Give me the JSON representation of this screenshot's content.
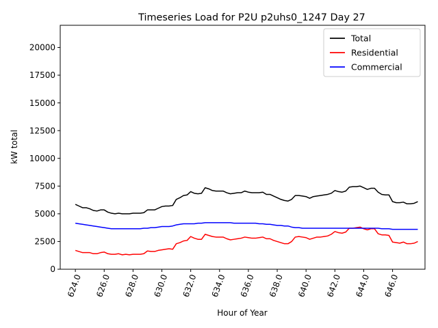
{
  "chart_data": {
    "type": "line",
    "title": "Timeseries Load for P2U p2uhs0_1247  Day 27",
    "xlabel": "Hour of Year",
    "ylabel": "kW total",
    "xlim": [
      622.95,
      648.25
    ],
    "ylim": [
      0,
      22000
    ],
    "xticks": [
      624,
      626,
      628,
      630,
      632,
      634,
      636,
      638,
      640,
      642,
      644,
      646
    ],
    "xtick_labels": [
      "624.0",
      "626.0",
      "628.0",
      "630.0",
      "632.0",
      "634.0",
      "636.0",
      "638.0",
      "640.0",
      "642.0",
      "644.0",
      "646.0"
    ],
    "yticks": [
      0,
      2500,
      5000,
      7500,
      10000,
      12500,
      15000,
      17500,
      20000
    ],
    "ytick_labels": [
      "0",
      "2500",
      "5000",
      "7500",
      "10000",
      "12500",
      "15000",
      "17500",
      "20000"
    ],
    "legend_position": "top-right",
    "series": [
      {
        "name": "Total",
        "color": "#000000",
        "x": [
          624.0,
          624.25,
          624.5,
          624.75,
          625.0,
          625.25,
          625.5,
          625.75,
          626.0,
          626.25,
          626.5,
          626.75,
          627.0,
          627.25,
          627.5,
          627.75,
          628.0,
          628.25,
          628.5,
          628.75,
          629.0,
          629.25,
          629.5,
          629.75,
          630.0,
          630.25,
          630.5,
          630.75,
          631.0,
          631.25,
          631.5,
          631.75,
          632.0,
          632.25,
          632.5,
          632.75,
          633.0,
          633.25,
          633.5,
          633.75,
          634.0,
          634.25,
          634.5,
          634.75,
          635.0,
          635.25,
          635.5,
          635.75,
          636.0,
          636.25,
          636.5,
          636.75,
          637.0,
          637.25,
          637.5,
          637.75,
          638.0,
          638.25,
          638.5,
          638.75,
          639.0,
          639.25,
          639.5,
          639.75,
          640.0,
          640.25,
          640.5,
          640.75,
          641.0,
          641.25,
          641.5,
          641.75,
          642.0,
          642.25,
          642.5,
          642.75,
          643.0,
          643.25,
          643.5,
          643.75,
          644.0,
          644.25,
          644.5,
          644.75,
          645.0,
          645.25,
          645.5,
          645.75,
          646.0,
          646.25,
          646.5,
          646.75,
          647.0,
          647.25,
          647.5,
          647.75
        ],
        "values": [
          5850,
          5700,
          5550,
          5550,
          5450,
          5300,
          5250,
          5350,
          5350,
          5150,
          5050,
          5000,
          5050,
          5000,
          5000,
          5000,
          5050,
          5050,
          5050,
          5100,
          5350,
          5350,
          5350,
          5500,
          5650,
          5700,
          5700,
          5750,
          6300,
          6450,
          6650,
          6700,
          7000,
          6850,
          6800,
          6850,
          7350,
          7250,
          7100,
          7050,
          7050,
          7050,
          6900,
          6800,
          6850,
          6900,
          6900,
          7050,
          6950,
          6900,
          6900,
          6900,
          6950,
          6750,
          6750,
          6600,
          6450,
          6300,
          6200,
          6150,
          6300,
          6650,
          6650,
          6600,
          6550,
          6400,
          6550,
          6600,
          6650,
          6700,
          6750,
          6850,
          7100,
          7000,
          6950,
          7050,
          7400,
          7450,
          7450,
          7500,
          7350,
          7200,
          7300,
          7300,
          6950,
          6750,
          6700,
          6700,
          6100,
          6000,
          6000,
          6050,
          5900,
          5900,
          5950,
          6100
        ]
      },
      {
        "name": "Residential",
        "color": "#ff0000",
        "x": [
          624.0,
          624.25,
          624.5,
          624.75,
          625.0,
          625.25,
          625.5,
          625.75,
          626.0,
          626.25,
          626.5,
          626.75,
          627.0,
          627.25,
          627.5,
          627.75,
          628.0,
          628.25,
          628.5,
          628.75,
          629.0,
          629.25,
          629.5,
          629.75,
          630.0,
          630.25,
          630.5,
          630.75,
          631.0,
          631.25,
          631.5,
          631.75,
          632.0,
          632.25,
          632.5,
          632.75,
          633.0,
          633.25,
          633.5,
          633.75,
          634.0,
          634.25,
          634.5,
          634.75,
          635.0,
          635.25,
          635.5,
          635.75,
          636.0,
          636.25,
          636.5,
          636.75,
          637.0,
          637.25,
          637.5,
          637.75,
          638.0,
          638.25,
          638.5,
          638.75,
          639.0,
          639.25,
          639.5,
          639.75,
          640.0,
          640.25,
          640.5,
          640.75,
          641.0,
          641.25,
          641.5,
          641.75,
          642.0,
          642.25,
          642.5,
          642.75,
          643.0,
          643.25,
          643.5,
          643.75,
          644.0,
          644.25,
          644.5,
          644.75,
          645.0,
          645.25,
          645.5,
          645.75,
          646.0,
          646.25,
          646.5,
          646.75,
          647.0,
          647.25,
          647.5,
          647.75
        ],
        "values": [
          1700,
          1600,
          1500,
          1500,
          1500,
          1400,
          1400,
          1500,
          1550,
          1400,
          1350,
          1350,
          1400,
          1300,
          1350,
          1300,
          1350,
          1350,
          1350,
          1400,
          1650,
          1600,
          1600,
          1700,
          1750,
          1800,
          1850,
          1800,
          2300,
          2400,
          2550,
          2600,
          2950,
          2800,
          2700,
          2700,
          3150,
          3050,
          2950,
          2900,
          2900,
          2900,
          2750,
          2650,
          2700,
          2750,
          2800,
          2900,
          2850,
          2800,
          2800,
          2850,
          2900,
          2750,
          2750,
          2600,
          2500,
          2400,
          2300,
          2300,
          2500,
          2900,
          2950,
          2900,
          2850,
          2700,
          2800,
          2900,
          2900,
          2950,
          3000,
          3150,
          3400,
          3300,
          3250,
          3350,
          3700,
          3700,
          3750,
          3800,
          3650,
          3550,
          3650,
          3650,
          3200,
          3100,
          3100,
          3050,
          2450,
          2400,
          2350,
          2450,
          2300,
          2300,
          2350,
          2500
        ]
      },
      {
        "name": "Commercial",
        "color": "#0000ff",
        "x": [
          624.0,
          624.25,
          624.5,
          624.75,
          625.0,
          625.25,
          625.5,
          625.75,
          626.0,
          626.25,
          626.5,
          626.75,
          627.0,
          627.25,
          627.5,
          627.75,
          628.0,
          628.25,
          628.5,
          628.75,
          629.0,
          629.25,
          629.5,
          629.75,
          630.0,
          630.25,
          630.5,
          630.75,
          631.0,
          631.25,
          631.5,
          631.75,
          632.0,
          632.25,
          632.5,
          632.75,
          633.0,
          633.25,
          633.5,
          633.75,
          634.0,
          634.25,
          634.5,
          634.75,
          635.0,
          635.25,
          635.5,
          635.75,
          636.0,
          636.25,
          636.5,
          636.75,
          637.0,
          637.25,
          637.5,
          637.75,
          638.0,
          638.25,
          638.5,
          638.75,
          639.0,
          639.25,
          639.5,
          639.75,
          640.0,
          640.25,
          640.5,
          640.75,
          641.0,
          641.25,
          641.5,
          641.75,
          642.0,
          642.25,
          642.5,
          642.75,
          643.0,
          643.25,
          643.5,
          643.75,
          644.0,
          644.25,
          644.5,
          644.75,
          645.0,
          645.25,
          645.5,
          645.75,
          646.0,
          646.25,
          646.5,
          646.75,
          647.0,
          647.25,
          647.5,
          647.75
        ],
        "values": [
          4150,
          4100,
          4050,
          4000,
          3950,
          3900,
          3850,
          3800,
          3750,
          3700,
          3650,
          3650,
          3650,
          3650,
          3650,
          3650,
          3650,
          3650,
          3650,
          3700,
          3700,
          3750,
          3750,
          3800,
          3850,
          3850,
          3850,
          3900,
          4000,
          4050,
          4100,
          4100,
          4100,
          4100,
          4150,
          4150,
          4200,
          4200,
          4200,
          4200,
          4200,
          4200,
          4200,
          4200,
          4150,
          4150,
          4150,
          4150,
          4150,
          4150,
          4150,
          4100,
          4100,
          4050,
          4050,
          4000,
          3950,
          3950,
          3900,
          3900,
          3800,
          3750,
          3750,
          3700,
          3700,
          3700,
          3700,
          3700,
          3700,
          3700,
          3700,
          3700,
          3700,
          3700,
          3700,
          3700,
          3700,
          3700,
          3700,
          3700,
          3700,
          3700,
          3700,
          3700,
          3700,
          3650,
          3650,
          3650,
          3600,
          3600,
          3600,
          3600,
          3600,
          3600,
          3600,
          3600
        ]
      }
    ]
  }
}
